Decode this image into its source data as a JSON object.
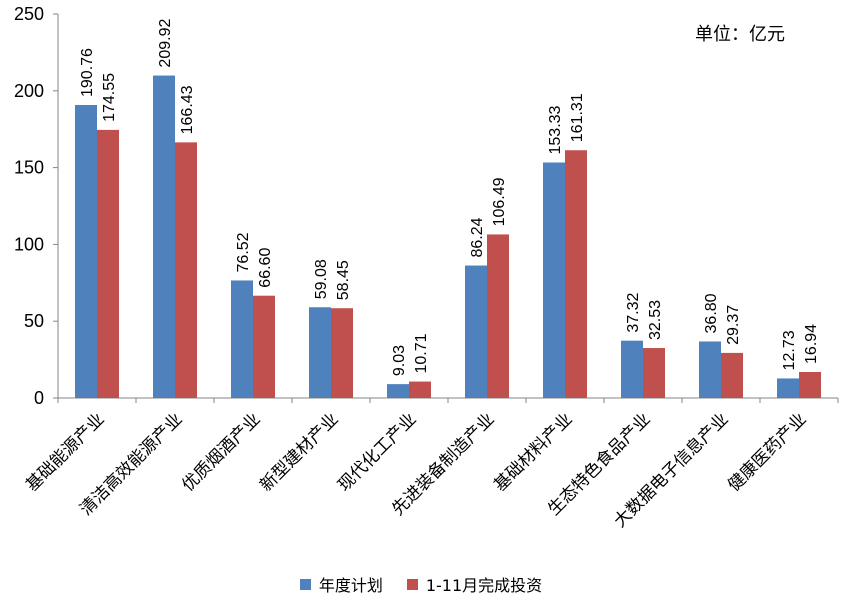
{
  "chart_data": {
    "type": "bar",
    "unit_label": "单位：亿元",
    "categories": [
      "基础能源产业",
      "清洁高效能源产业",
      "优质烟酒产业",
      "新型建材产业",
      "现代化工产业",
      "先进装备制造产业",
      "基础材料产业",
      "生态特色食品产业",
      "大数据电子信息产业",
      "健康医药产业"
    ],
    "series": [
      {
        "name": "年度计划",
        "color": "#4F81BD",
        "values": [
          190.76,
          209.92,
          76.52,
          59.08,
          9.03,
          86.24,
          153.33,
          37.32,
          36.8,
          12.73
        ],
        "labels": [
          "190.76",
          "209.92",
          "76.52",
          "59.08",
          "9.03",
          "86.24",
          "153.33",
          "37.32",
          "36.80",
          "12.73"
        ]
      },
      {
        "name": "1-11月完成投资",
        "color": "#C0504D",
        "values": [
          174.55,
          166.43,
          66.6,
          58.45,
          10.71,
          106.49,
          161.31,
          32.53,
          29.37,
          16.94
        ],
        "labels": [
          "174.55",
          "166.43",
          "66.60",
          "58.45",
          "10.71",
          "106.49",
          "161.31",
          "32.53",
          "29.37",
          "16.94"
        ]
      }
    ],
    "yticks": [
      "0",
      "50",
      "100",
      "150",
      "200",
      "250"
    ],
    "ylim": [
      0,
      250
    ],
    "grid": false,
    "legend_position": "bottom"
  }
}
